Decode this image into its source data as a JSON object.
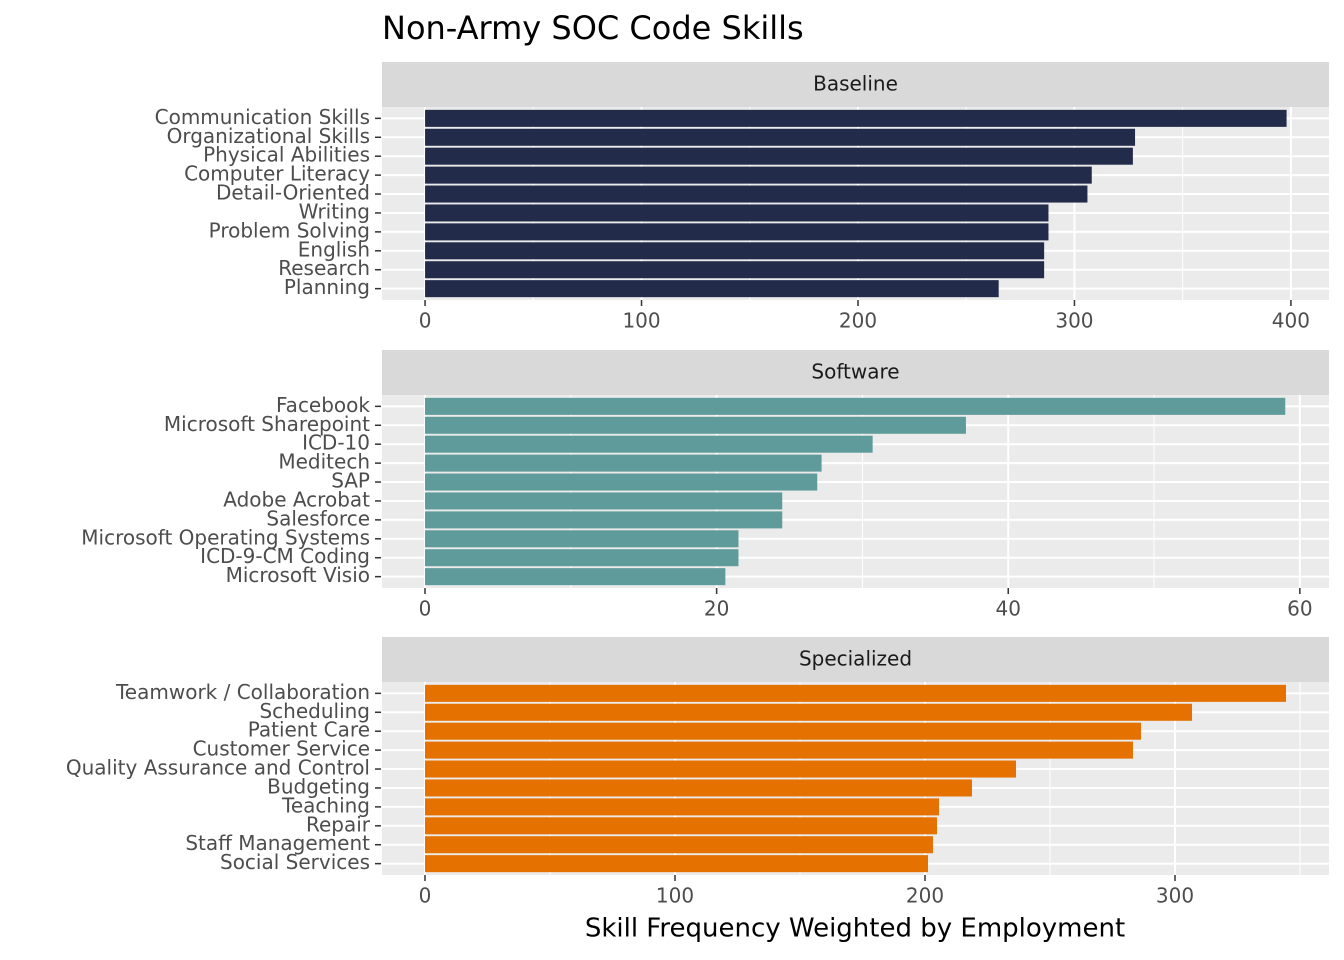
{
  "title": "Non-Army SOC Code Skills",
  "xlabel": "Skill Frequency Weighted by Employment",
  "chart_data": [
    {
      "type": "hbar",
      "title": "Baseline",
      "color": "#232b4b",
      "categories": [
        "Communication Skills",
        "Organizational Skills",
        "Physical Abilities",
        "Computer Literacy",
        "Detail-Oriented",
        "Writing",
        "Problem Solving",
        "English",
        "Research",
        "Planning"
      ],
      "values": [
        398,
        328,
        327,
        308,
        306,
        288,
        288,
        286,
        286,
        265
      ],
      "xlim": [
        -19.9,
        417.6
      ],
      "xticks": [
        0,
        100,
        200,
        300,
        400
      ],
      "grid": true
    },
    {
      "type": "hbar",
      "title": "Software",
      "color": "#5f9b9a",
      "categories": [
        "Facebook",
        "Microsoft Sharepoint",
        "ICD-10",
        "Meditech",
        "SAP",
        "Adobe Acrobat",
        "Salesforce",
        "Microsoft Operating Systems",
        "ICD-9-CM Coding",
        "Microsoft Visio"
      ],
      "values": [
        59,
        37.1,
        30.7,
        27.2,
        26.9,
        24.5,
        24.5,
        21.5,
        21.5,
        20.6
      ],
      "xlim": [
        -2.95,
        62
      ],
      "xticks": [
        0,
        20,
        40,
        60
      ],
      "grid": true
    },
    {
      "type": "hbar",
      "title": "Specialized",
      "color": "#e57100",
      "categories": [
        "Teamwork / Collaboration",
        "Scheduling",
        "Patient Care",
        "Customer Service",
        "Quality Assurance and Control",
        "Budgeting",
        "Teaching",
        "Repair",
        "Staff Management",
        "Social Services"
      ],
      "values": [
        344.4,
        306.8,
        286.4,
        283.2,
        236.4,
        218.8,
        205.6,
        204.8,
        203.2,
        201.2
      ],
      "xlim": [
        -17.2,
        361.6
      ],
      "xticks": [
        0,
        100,
        200,
        300
      ],
      "grid": true
    }
  ]
}
